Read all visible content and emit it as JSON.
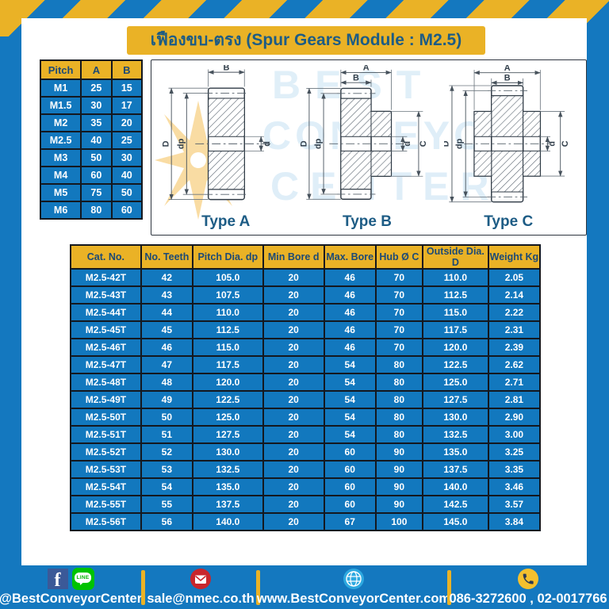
{
  "title": "เฟืองขบ-ตรง (Spur Gears Module : M2.5)",
  "colors": {
    "page_blue": "#1478bf",
    "accent_gold": "#eab226",
    "heading_blue": "#1d5c85",
    "table_cell_blue": "#1278be",
    "facebook_blue": "#3b5998",
    "line_green": "#00c300",
    "email_red": "#c9262c",
    "globe_blue": "#2ea9e0",
    "phone_yellow": "#f4c02e"
  },
  "pitch_table": {
    "headers": [
      "Pitch",
      "A",
      "B"
    ],
    "rows": [
      [
        "M1",
        "25",
        "15"
      ],
      [
        "M1.5",
        "30",
        "17"
      ],
      [
        "M2",
        "35",
        "20"
      ],
      [
        "M2.5",
        "40",
        "25"
      ],
      [
        "M3",
        "50",
        "30"
      ],
      [
        "M4",
        "60",
        "40"
      ],
      [
        "M5",
        "75",
        "50"
      ],
      [
        "M6",
        "80",
        "60"
      ]
    ]
  },
  "diagram": {
    "types": [
      "Type A",
      "Type B",
      "Type C"
    ],
    "watermark": [
      "BEST",
      "CONVEYOR",
      "CENTER"
    ],
    "dims": {
      "A": "A",
      "B": "B",
      "C": "C",
      "D": "D",
      "d": "d",
      "dp": "dp"
    }
  },
  "main_table": {
    "headers": [
      "Cat. No.",
      "No. Teeth",
      "Pitch Dia. dp",
      "Min Bore d",
      "Max. Bore",
      "Hub Ø C",
      "Outside Dia. D",
      "Weight Kg"
    ],
    "rows": [
      [
        "M2.5-42T",
        "42",
        "105.0",
        "20",
        "46",
        "70",
        "110.0",
        "2.05"
      ],
      [
        "M2.5-43T",
        "43",
        "107.5",
        "20",
        "46",
        "70",
        "112.5",
        "2.14"
      ],
      [
        "M2.5-44T",
        "44",
        "110.0",
        "20",
        "46",
        "70",
        "115.0",
        "2.22"
      ],
      [
        "M2.5-45T",
        "45",
        "112.5",
        "20",
        "46",
        "70",
        "117.5",
        "2.31"
      ],
      [
        "M2.5-46T",
        "46",
        "115.0",
        "20",
        "46",
        "70",
        "120.0",
        "2.39"
      ],
      [
        "M2.5-47T",
        "47",
        "117.5",
        "20",
        "54",
        "80",
        "122.5",
        "2.62"
      ],
      [
        "M2.5-48T",
        "48",
        "120.0",
        "20",
        "54",
        "80",
        "125.0",
        "2.71"
      ],
      [
        "M2.5-49T",
        "49",
        "122.5",
        "20",
        "54",
        "80",
        "127.5",
        "2.81"
      ],
      [
        "M2.5-50T",
        "50",
        "125.0",
        "20",
        "54",
        "80",
        "130.0",
        "2.90"
      ],
      [
        "M2.5-51T",
        "51",
        "127.5",
        "20",
        "54",
        "80",
        "132.5",
        "3.00"
      ],
      [
        "M2.5-52T",
        "52",
        "130.0",
        "20",
        "60",
        "90",
        "135.0",
        "3.25"
      ],
      [
        "M2.5-53T",
        "53",
        "132.5",
        "20",
        "60",
        "90",
        "137.5",
        "3.35"
      ],
      [
        "M2.5-54T",
        "54",
        "135.0",
        "20",
        "60",
        "90",
        "140.0",
        "3.46"
      ],
      [
        "M2.5-55T",
        "55",
        "137.5",
        "20",
        "60",
        "90",
        "142.5",
        "3.57"
      ],
      [
        "M2.5-56T",
        "56",
        "140.0",
        "20",
        "67",
        "100",
        "145.0",
        "3.84"
      ]
    ]
  },
  "footer": {
    "facebook_glyph": "f",
    "line_label": "LINE",
    "social_handle": "@BestConveyorCenter",
    "email": "sale@nmec.co.th",
    "website": "www.BestConveyorCenter.com",
    "phone": "086-3272600 , 02-0017766"
  }
}
